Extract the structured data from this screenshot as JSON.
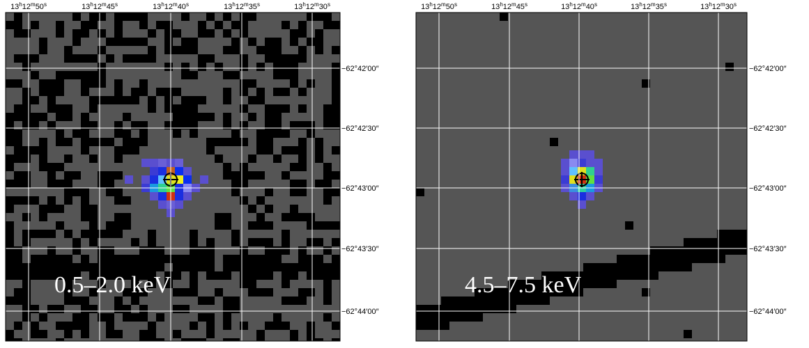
{
  "panels": [
    {
      "band": "0.5–2.0 keV",
      "ra_labels": [
        "13h12m50s",
        "13h12m45s",
        "13h12m40s",
        "13h12m35s",
        "13h12m30s"
      ],
      "dec_labels": [
        "−62°42′00″",
        "−62°42′30″",
        "−62°43′00″",
        "−62°43′30″",
        "−62°44′00″"
      ]
    },
    {
      "band": "4.5–7.5 keV",
      "ra_labels": [
        "13h12m50s",
        "13h12m45s",
        "13h12m40s",
        "13h12m35s",
        "13h12m30s"
      ],
      "dec_labels": [
        "−62°42′00″",
        "−62°42′30″",
        "−62°43′00″",
        "−62°43′30″",
        "−62°44′00″"
      ]
    }
  ]
}
